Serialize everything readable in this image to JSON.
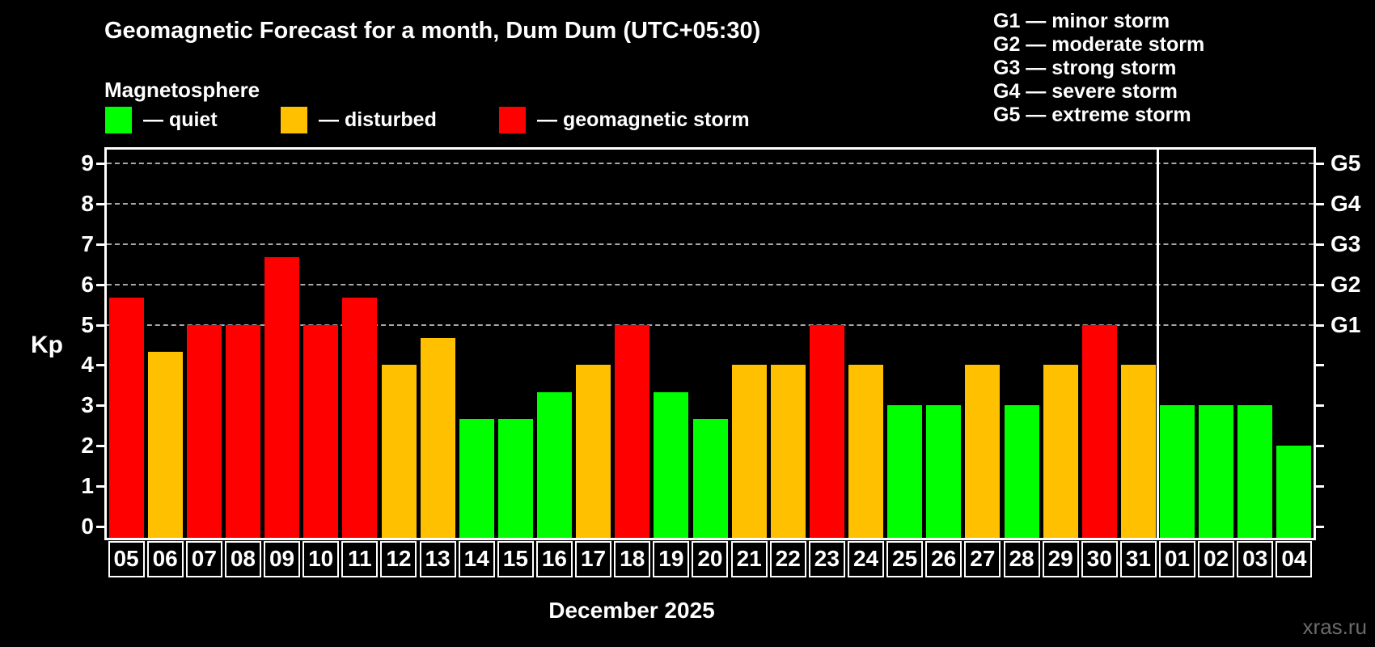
{
  "header": {
    "title": "Geomagnetic Forecast for a month, Dum Dum (UTC+05:30)",
    "subtitle": "Magnetosphere"
  },
  "legend": {
    "items": [
      {
        "label": "— quiet",
        "status": "quiet",
        "color": "#00ff00"
      },
      {
        "label": "— disturbed",
        "status": "disturbed",
        "color": "#ffc000"
      },
      {
        "label": "— geomagnetic storm",
        "status": "storm",
        "color": "#ff0000"
      }
    ]
  },
  "storm_scale_legend": {
    "lines": [
      "G1 — minor storm",
      "G2 — moderate storm",
      "G3 — strong storm",
      "G4 — severe storm",
      "G5 — extreme storm"
    ]
  },
  "colors": {
    "background": "#000000",
    "axis": "#ffffff",
    "grid": "#a8a8a8",
    "quiet": "#00ff00",
    "disturbed": "#ffc000",
    "storm": "#ff0000",
    "watermark": "#6b6b6b"
  },
  "chart_data": {
    "type": "bar",
    "title": "Geomagnetic Forecast for a month, Dum Dum (UTC+05:30)",
    "ylabel": "Kp",
    "xlabel": "December 2025",
    "ylim": [
      0,
      9
    ],
    "yticks": [
      0,
      1,
      2,
      3,
      4,
      5,
      6,
      7,
      8,
      9
    ],
    "gridlines_at_kp": [
      5,
      6,
      7,
      8,
      9
    ],
    "legend_position": "top-left",
    "right_axis": [
      {
        "kp": 5,
        "label": "G1"
      },
      {
        "kp": 6,
        "label": "G2"
      },
      {
        "kp": 7,
        "label": "G3"
      },
      {
        "kp": 8,
        "label": "G4"
      },
      {
        "kp": 9,
        "label": "G5"
      }
    ],
    "month_separator_between": [
      "31",
      "01"
    ],
    "bars": [
      {
        "day": "05",
        "kp": 5.67,
        "status": "storm"
      },
      {
        "day": "06",
        "kp": 4.33,
        "status": "disturbed"
      },
      {
        "day": "07",
        "kp": 5.0,
        "status": "storm"
      },
      {
        "day": "08",
        "kp": 5.0,
        "status": "storm"
      },
      {
        "day": "09",
        "kp": 6.67,
        "status": "storm"
      },
      {
        "day": "10",
        "kp": 5.0,
        "status": "storm"
      },
      {
        "day": "11",
        "kp": 5.67,
        "status": "storm"
      },
      {
        "day": "12",
        "kp": 4.0,
        "status": "disturbed"
      },
      {
        "day": "13",
        "kp": 4.67,
        "status": "disturbed"
      },
      {
        "day": "14",
        "kp": 2.67,
        "status": "quiet"
      },
      {
        "day": "15",
        "kp": 2.67,
        "status": "quiet"
      },
      {
        "day": "16",
        "kp": 3.33,
        "status": "quiet"
      },
      {
        "day": "17",
        "kp": 4.0,
        "status": "disturbed"
      },
      {
        "day": "18",
        "kp": 5.0,
        "status": "storm"
      },
      {
        "day": "19",
        "kp": 3.33,
        "status": "quiet"
      },
      {
        "day": "20",
        "kp": 2.67,
        "status": "quiet"
      },
      {
        "day": "21",
        "kp": 4.0,
        "status": "disturbed"
      },
      {
        "day": "22",
        "kp": 4.0,
        "status": "disturbed"
      },
      {
        "day": "23",
        "kp": 5.0,
        "status": "storm"
      },
      {
        "day": "24",
        "kp": 4.0,
        "status": "disturbed"
      },
      {
        "day": "25",
        "kp": 3.0,
        "status": "quiet"
      },
      {
        "day": "26",
        "kp": 3.0,
        "status": "quiet"
      },
      {
        "day": "27",
        "kp": 4.0,
        "status": "disturbed"
      },
      {
        "day": "28",
        "kp": 3.0,
        "status": "quiet"
      },
      {
        "day": "29",
        "kp": 4.0,
        "status": "disturbed"
      },
      {
        "day": "30",
        "kp": 5.0,
        "status": "storm"
      },
      {
        "day": "31",
        "kp": 4.0,
        "status": "disturbed"
      },
      {
        "day": "01",
        "kp": 3.0,
        "status": "quiet"
      },
      {
        "day": "02",
        "kp": 3.0,
        "status": "quiet"
      },
      {
        "day": "03",
        "kp": 3.0,
        "status": "quiet"
      },
      {
        "day": "04",
        "kp": 2.0,
        "status": "quiet"
      }
    ]
  },
  "footer": {
    "month_label": "December 2025",
    "watermark": "xras.ru"
  }
}
